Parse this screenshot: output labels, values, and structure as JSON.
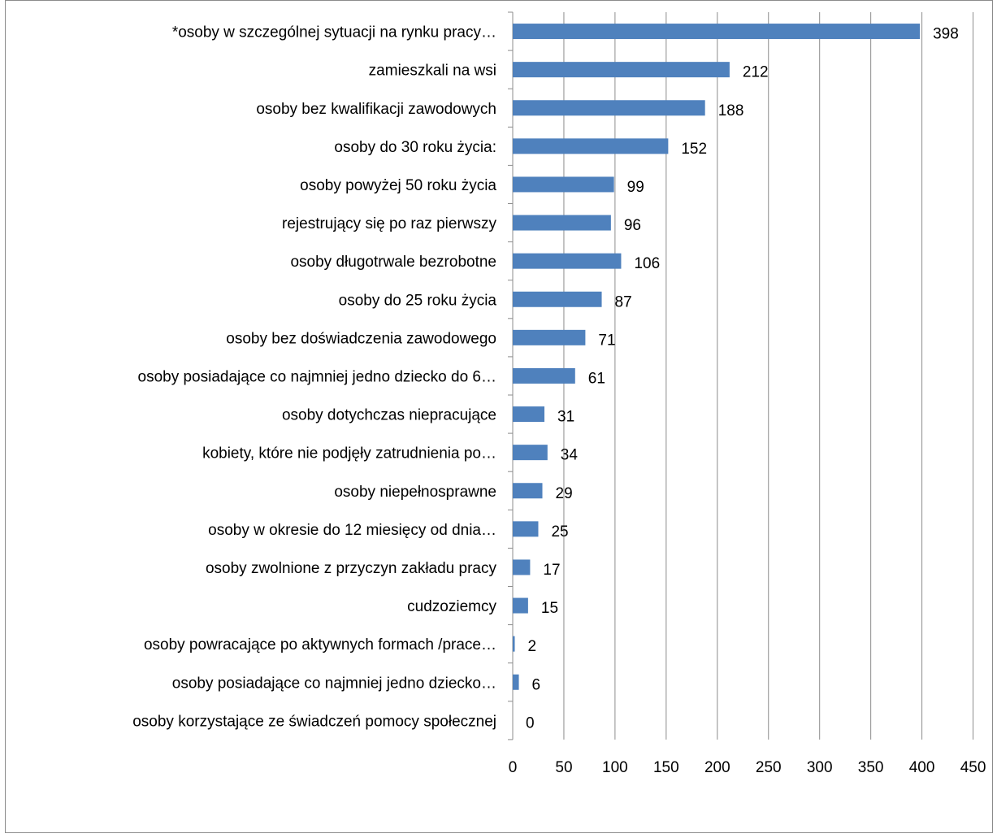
{
  "chart_data": {
    "type": "bar",
    "orientation": "horizontal",
    "title": "",
    "xlabel": "",
    "ylabel": "",
    "xlim": [
      0,
      450
    ],
    "x_ticks": [
      0,
      50,
      100,
      150,
      200,
      250,
      300,
      350,
      400,
      450
    ],
    "grid": "vertical",
    "legend": "none",
    "bar_color": "#4f81bd",
    "categories": [
      "*osoby w szczególnej sytuacji na rynku pracy…",
      "zamieszkali na wsi",
      "osoby bez kwalifikacji zawodowych",
      "osoby do 30 roku życia:",
      "osoby powyżej 50 roku życia",
      "rejestrujący się po raz pierwszy",
      "osoby długotrwale bezrobotne",
      "osoby do 25 roku życia",
      "osoby bez doświadczenia zawodowego",
      "osoby posiadające co najmniej jedno dziecko do 6…",
      "osoby dotychczas niepracujące",
      "kobiety, które nie podjęły zatrudnienia po…",
      "osoby niepełnosprawne",
      "osoby w okresie do 12 miesięcy od dnia…",
      "osoby zwolnione z przyczyn zakładu pracy",
      "cudzoziemcy",
      "osoby powracające po aktywnych formach /prace…",
      "osoby posiadające co najmniej jedno dziecko…",
      "osoby korzystające ze świadczeń pomocy społecznej"
    ],
    "values": [
      398,
      212,
      188,
      152,
      99,
      96,
      106,
      87,
      71,
      61,
      31,
      34,
      29,
      25,
      17,
      15,
      2,
      6,
      0
    ]
  }
}
